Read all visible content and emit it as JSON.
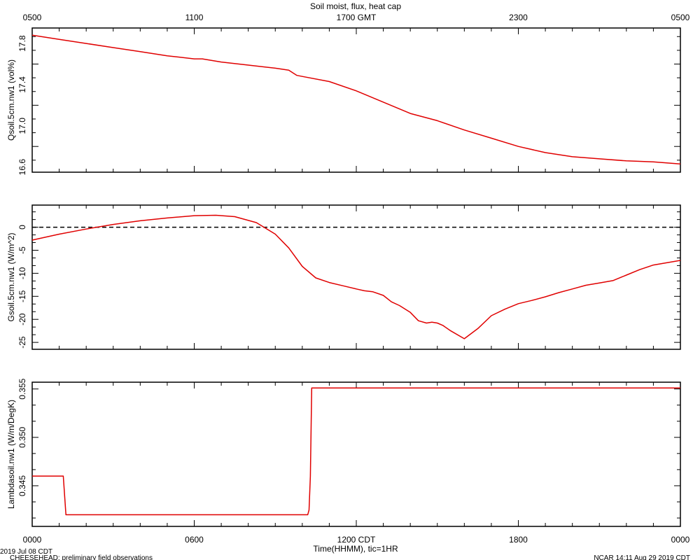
{
  "header": {
    "title": "Soil moist, flux, heat cap"
  },
  "footer": {
    "date_label": "2019 Jul 08 CDT",
    "project_label": "CHEESEHEAD: preliminary field observations",
    "credit_label": "NCAR 14:11 Aug 29 2019 CDT"
  },
  "colors": {
    "series": "#e00000",
    "axes": "#000000",
    "zero_line": "#000000"
  },
  "chart_data": [
    {
      "type": "line",
      "ylabel": "Qsoil.5cm.nw1 (vol%)",
      "top_axis": {
        "ticks": [
          "0500",
          "1100",
          "1700 GMT",
          "2300",
          "0500"
        ]
      },
      "x_unit": "hours since 0000 CDT",
      "xlim": [
        0,
        24
      ],
      "ylim": [
        16.55,
        17.95
      ],
      "yticks": [
        16.6,
        17.0,
        17.4,
        17.8
      ],
      "ytick_labels": [
        "16.6",
        "17.0",
        "17.4",
        "17.8"
      ],
      "series": [
        {
          "x": [
            0,
            1,
            2,
            3,
            4,
            5,
            6,
            6.3,
            7,
            8,
            9,
            9.5,
            9.8,
            10,
            11,
            12,
            13,
            14,
            15,
            16,
            17,
            18,
            19,
            20,
            21,
            22,
            23,
            24
          ],
          "values": [
            17.88,
            17.84,
            17.8,
            17.76,
            17.72,
            17.68,
            17.65,
            17.65,
            17.62,
            17.59,
            17.56,
            17.54,
            17.49,
            17.48,
            17.43,
            17.34,
            17.23,
            17.12,
            17.05,
            16.96,
            16.88,
            16.8,
            16.74,
            16.7,
            16.68,
            16.66,
            16.65,
            16.63
          ]
        }
      ]
    },
    {
      "type": "line",
      "ylabel": "Gsoil.5cm.nw1 (W/m^2)",
      "xlim": [
        0,
        24
      ],
      "ylim": [
        -26.5,
        4.8
      ],
      "yticks": [
        -25,
        -20,
        -15,
        -10,
        -5,
        0
      ],
      "ytick_labels": [
        "-25",
        "-20",
        "-15",
        "-10",
        "-5",
        "0"
      ],
      "zero_line": true,
      "series": [
        {
          "x": [
            0,
            1,
            2,
            3,
            4,
            5,
            6,
            6.8,
            7.5,
            8.3,
            9,
            9.5,
            10,
            10.5,
            11,
            11.5,
            12,
            12.3,
            12.6,
            13,
            13.3,
            13.6,
            14,
            14.3,
            14.6,
            14.8,
            15,
            15.2,
            15.5,
            16,
            16.5,
            17,
            17.5,
            18,
            18.5,
            19,
            19.5,
            20,
            20.5,
            21,
            21.5,
            22,
            22.5,
            23,
            24
          ],
          "values": [
            -2.8,
            -1.5,
            -0.4,
            0.6,
            1.4,
            2.0,
            2.5,
            2.6,
            2.3,
            1.0,
            -1.5,
            -4.5,
            -8.5,
            -11.0,
            -12.0,
            -12.7,
            -13.4,
            -13.8,
            -14.0,
            -14.8,
            -16.2,
            -17.0,
            -18.5,
            -20.3,
            -20.8,
            -20.6,
            -20.8,
            -21.3,
            -22.5,
            -24.2,
            -22.0,
            -19.2,
            -17.8,
            -16.6,
            -15.9,
            -15.1,
            -14.2,
            -13.4,
            -12.6,
            -12.1,
            -11.6,
            -10.4,
            -9.2,
            -8.2,
            -7.2
          ]
        }
      ]
    },
    {
      "type": "line",
      "ylabel": "Lambdasoil.nw1 (W/m/DegK)",
      "xlabel": "Time(HHMM), tic=1HR",
      "xlim": [
        0,
        24
      ],
      "ylim": [
        0.3408,
        0.3557
      ],
      "yticks": [
        0.345,
        0.35,
        0.355
      ],
      "ytick_labels": [
        "0.345",
        "0.350",
        "0.355"
      ],
      "bottom_axis": {
        "ticks": [
          "0000",
          "0600",
          "1200 CDT",
          "1800",
          "0000"
        ]
      },
      "series": [
        {
          "x": [
            0,
            1.15,
            1.25,
            10.2,
            10.25,
            10.3,
            10.35,
            24
          ],
          "values": [
            0.346,
            0.346,
            0.342,
            0.342,
            0.3425,
            0.346,
            0.3551,
            0.3551
          ]
        }
      ]
    }
  ]
}
